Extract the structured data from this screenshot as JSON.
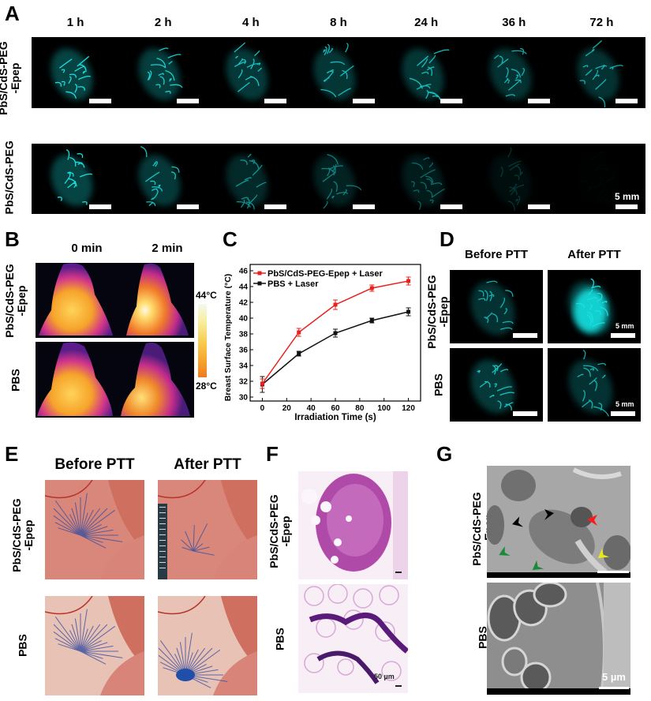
{
  "panels": {
    "A": {
      "letter": "A",
      "columns": [
        "1 h",
        "2 h",
        "4 h",
        "8 h",
        "24 h",
        "36 h",
        "72 h"
      ],
      "rows": [
        {
          "label_line1": "PbS/CdS-PEG",
          "label_line2": "-Epep",
          "intensity": [
            1.0,
            0.9,
            0.85,
            0.8,
            0.8,
            0.75,
            0.75
          ]
        },
        {
          "label_line1": "PbS/CdS-PEG",
          "label_line2": "",
          "intensity": [
            1.0,
            0.85,
            0.6,
            0.5,
            0.4,
            0.2,
            0.02
          ]
        }
      ],
      "scale_bar": "5 mm"
    },
    "B": {
      "letter": "B",
      "columns": [
        "0 min",
        "2 min"
      ],
      "rows": [
        {
          "label_line1": "PbS/CdS-PEG",
          "label_line2": "-Epep"
        },
        {
          "label_line1": "PBS",
          "label_line2": ""
        }
      ],
      "colorbar": {
        "max": "44°C",
        "min": "28°C"
      }
    },
    "C": {
      "letter": "C"
    },
    "D": {
      "letter": "D",
      "columns": [
        "Before PTT",
        "After PTT"
      ],
      "rows": [
        {
          "label_line1": "PbS/CdS-PEG",
          "label_line2": "-Epep"
        },
        {
          "label_line1": "PBS",
          "label_line2": ""
        }
      ],
      "scale_bar": "5 mm"
    },
    "E": {
      "letter": "E",
      "columns": [
        "Before PTT",
        "After PTT"
      ],
      "rows": [
        {
          "label_line1": "PbS/CdS-PEG",
          "label_line2": "-Epep"
        },
        {
          "label_line1": "PBS",
          "label_line2": ""
        }
      ]
    },
    "F": {
      "letter": "F",
      "rows": [
        {
          "label_line1": "PbS/CdS-PEG",
          "label_line2": "-Epep"
        },
        {
          "label_line1": "PBS",
          "label_line2": ""
        }
      ],
      "scale_bar": "50 µm"
    },
    "G": {
      "letter": "G",
      "rows": [
        {
          "label_line1": "PbS/CdS-PEG",
          "label_line2": "-Epep"
        },
        {
          "label_line1": "PBS",
          "label_line2": ""
        }
      ],
      "scale_bar": "5 µm",
      "arrow_colors": {
        "black": "#000000",
        "red": "#ff1a1a",
        "green": "#1a8a3a",
        "yellow": "#e8e81a"
      }
    }
  },
  "colors": {
    "fluorescence": "#19e0e0",
    "series_red": "#e8201e",
    "series_black": "#111111"
  },
  "chart_data": {
    "type": "line",
    "title": "",
    "xlabel": "Irradiation Time (s)",
    "ylabel": "Breast Surface Temperature (°C)",
    "x": [
      0,
      30,
      60,
      90,
      120
    ],
    "xlim": [
      -10,
      130
    ],
    "ylim": [
      29.5,
      46.8
    ],
    "xticks": [
      0,
      20,
      40,
      60,
      80,
      100,
      120
    ],
    "yticks": [
      30,
      32,
      34,
      36,
      38,
      40,
      42,
      44,
      46
    ],
    "grid": false,
    "legend_position": "upper left",
    "series": [
      {
        "name": "PbS/CdS-PEG-Epep + Laser",
        "color": "#e8201e",
        "values": [
          31.7,
          38.2,
          41.7,
          43.8,
          44.7
        ],
        "errors": [
          0.6,
          0.5,
          0.6,
          0.4,
          0.5
        ]
      },
      {
        "name": "PBS + Laser",
        "color": "#111111",
        "values": [
          31.6,
          35.5,
          38.1,
          39.7,
          40.8
        ],
        "errors": [
          1.0,
          0.3,
          0.5,
          0.3,
          0.5
        ]
      }
    ]
  }
}
